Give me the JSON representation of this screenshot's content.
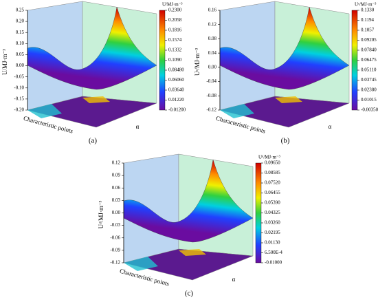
{
  "chart_data": [
    {
      "type": "surface",
      "panel_label": "(a)",
      "zlabel": "U/MJ·m⁻³",
      "xlabel": "Characteristic points",
      "ylabel": "α",
      "zlim": [
        -0.2,
        0.25
      ],
      "zticks": [
        {
          "value": 0.25,
          "label": "0.25"
        },
        {
          "value": 0.2,
          "label": "0.20"
        },
        {
          "value": 0.15,
          "label": "0.15"
        },
        {
          "value": 0.1,
          "label": "0.10"
        },
        {
          "value": 0.05,
          "label": "0.05"
        },
        {
          "value": 0,
          "label": "0.00"
        },
        {
          "value": -0.05,
          "label": "-0.05"
        },
        {
          "value": -0.1,
          "label": "-0.10"
        },
        {
          "value": -0.15,
          "label": "-0.15"
        },
        {
          "value": -0.2,
          "label": "-0.20"
        }
      ],
      "colorbar": {
        "label": "U/MJ·m⁻³",
        "lim": [
          -0.012,
          0.23
        ],
        "ticks": [
          {
            "value": 0.23,
            "label": "0.2300"
          },
          {
            "value": 0.2058,
            "label": "0.2058"
          },
          {
            "value": 0.1816,
            "label": "0.1816"
          },
          {
            "value": 0.1574,
            "label": "0.1574"
          },
          {
            "value": 0.1332,
            "label": "0.1332"
          },
          {
            "value": 0.109,
            "label": "0.1090"
          },
          {
            "value": 0.0848,
            "label": "0.08480"
          },
          {
            "value": 0.0606,
            "label": "0.06060"
          },
          {
            "value": 0.0364,
            "label": "0.03640"
          },
          {
            "value": 0.0122,
            "label": "0.01220"
          },
          {
            "value": -0.012,
            "label": "-0.01200"
          }
        ]
      }
    },
    {
      "type": "surface",
      "panel_label": "(b)",
      "zlabel": "Uᵉ/MJ·m⁻³",
      "xlabel": "Characteristic points",
      "ylabel": "α",
      "zlim": [
        -0.12,
        0.16
      ],
      "zticks": [
        {
          "value": 0.16,
          "label": "0.16"
        },
        {
          "value": 0.12,
          "label": "0.12"
        },
        {
          "value": 0.08,
          "label": "0.08"
        },
        {
          "value": 0.04,
          "label": "0.04"
        },
        {
          "value": 0,
          "label": "0.00"
        },
        {
          "value": -0.04,
          "label": "-0.04"
        },
        {
          "value": -0.08,
          "label": "-0.08"
        },
        {
          "value": -0.12,
          "label": "-0.12"
        }
      ],
      "colorbar": {
        "label": "Uᵉ/MJ·m⁻³",
        "lim": [
          -0.0035,
          0.133
        ],
        "ticks": [
          {
            "value": 0.133,
            "label": "0.1330"
          },
          {
            "value": 0.1194,
            "label": "0.1194"
          },
          {
            "value": 0.1057,
            "label": "0.1057"
          },
          {
            "value": 0.09205,
            "label": "0.09205"
          },
          {
            "value": 0.0784,
            "label": "0.07840"
          },
          {
            "value": 0.06475,
            "label": "0.06475"
          },
          {
            "value": 0.0511,
            "label": "0.05110"
          },
          {
            "value": 0.03745,
            "label": "0.03745"
          },
          {
            "value": 0.0238,
            "label": "0.02380"
          },
          {
            "value": 0.01015,
            "label": "0.01015"
          },
          {
            "value": -0.0035,
            "label": "-0.003500"
          }
        ]
      }
    },
    {
      "type": "surface",
      "panel_label": "(c)",
      "zlabel": "Uᵈ/MJ·m⁻³",
      "xlabel": "Characteristic points",
      "ylabel": "α",
      "zlim": [
        -0.12,
        0.12
      ],
      "zticks": [
        {
          "value": 0.12,
          "label": "0.12"
        },
        {
          "value": 0.09,
          "label": "0.09"
        },
        {
          "value": 0.06,
          "label": "0.06"
        },
        {
          "value": 0.03,
          "label": "0.03"
        },
        {
          "value": 0,
          "label": "0.00"
        },
        {
          "value": -0.03,
          "label": "-0.03"
        },
        {
          "value": -0.06,
          "label": "-0.06"
        },
        {
          "value": -0.09,
          "label": "-0.09"
        },
        {
          "value": -0.12,
          "label": "-0.12"
        }
      ],
      "colorbar": {
        "label": "Uᵈ/MJ·m⁻³",
        "lim": [
          -0.01,
          0.0965
        ],
        "ticks": [
          {
            "value": 0.0965,
            "label": "0.09650"
          },
          {
            "value": 0.08585,
            "label": "0.08585"
          },
          {
            "value": 0.0752,
            "label": "0.07520"
          },
          {
            "value": 0.06455,
            "label": "0.06455"
          },
          {
            "value": 0.0539,
            "label": "0.05390"
          },
          {
            "value": 0.04325,
            "label": "0.04325"
          },
          {
            "value": 0.0326,
            "label": "0.03260"
          },
          {
            "value": 0.02195,
            "label": "0.02195"
          },
          {
            "value": 0.0113,
            "label": "0.01130"
          },
          {
            "value": 0.00065,
            "label": "6.500E-4"
          },
          {
            "value": -0.01,
            "label": "-0.01000"
          }
        ]
      }
    }
  ]
}
